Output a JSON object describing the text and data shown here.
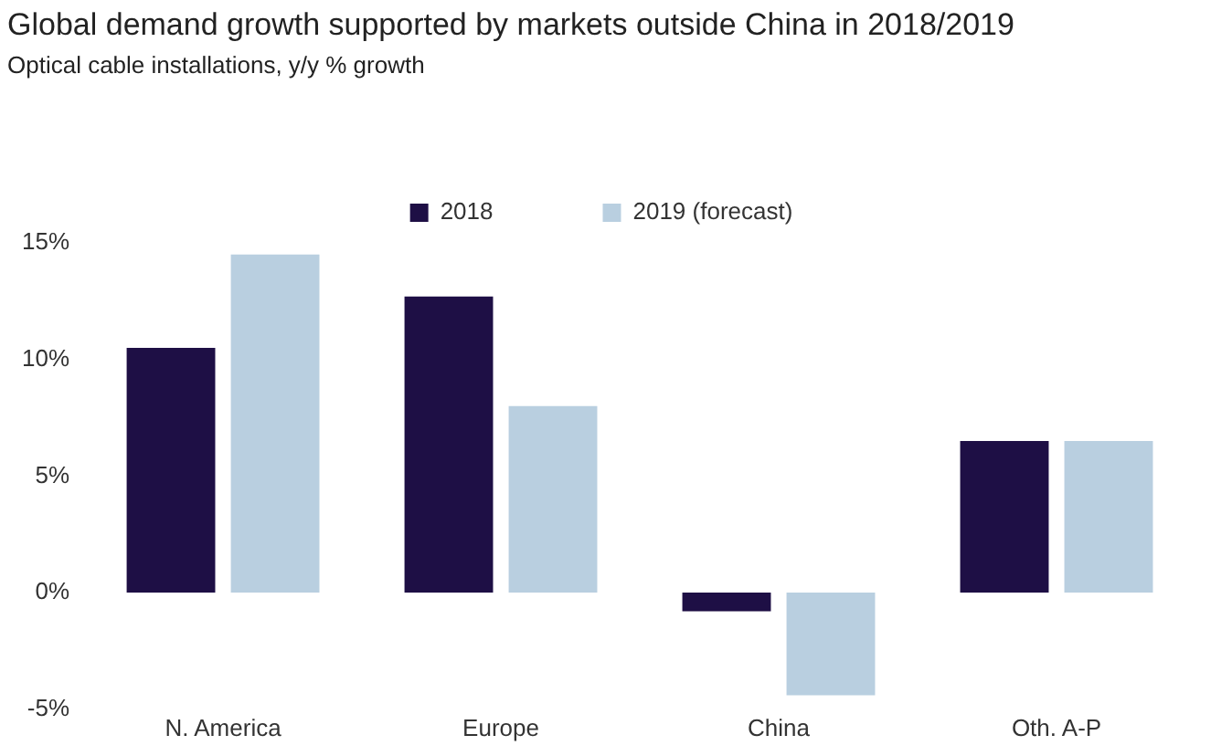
{
  "chart_data": {
    "type": "bar",
    "title": "Global demand growth supported by markets outside China in 2018/2019",
    "subtitle": "Optical cable installations, y/y % growth",
    "categories": [
      "N. America",
      "Europe",
      "China",
      "Oth. A-P"
    ],
    "series": [
      {
        "name": "2018",
        "color": "#1e0f45",
        "values": [
          10.5,
          12.7,
          -0.8,
          6.5
        ]
      },
      {
        "name": "2019 (forecast)",
        "color": "#b9cfe0",
        "values": [
          14.5,
          8.0,
          -4.4,
          6.5
        ]
      }
    ],
    "ylim": [
      -5,
      15
    ],
    "yticks": [
      {
        "value": -5,
        "label": "-5%"
      },
      {
        "value": 0,
        "label": "0%"
      },
      {
        "value": 5,
        "label": "5%"
      },
      {
        "value": 10,
        "label": "10%"
      },
      {
        "value": 15,
        "label": "15%"
      }
    ],
    "grid": false,
    "legend": "top"
  }
}
